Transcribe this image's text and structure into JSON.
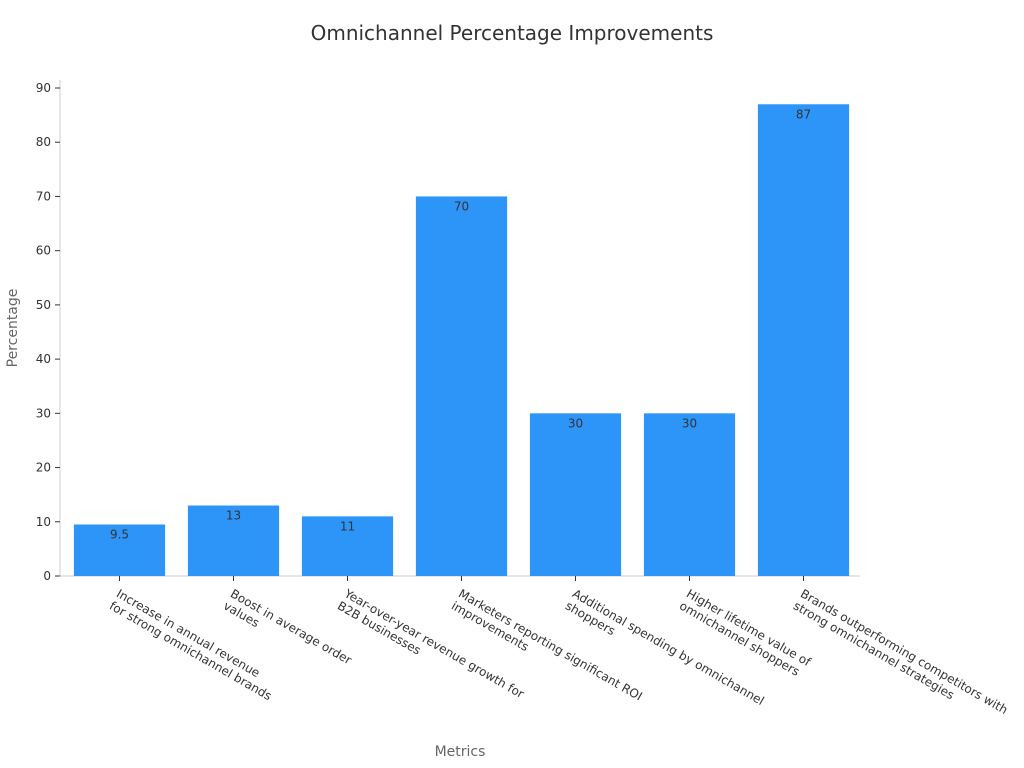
{
  "chart_data": {
    "type": "bar",
    "title": "Omnichannel Percentage Improvements",
    "xlabel": "Metrics",
    "ylabel": "Percentage",
    "ylim": [
      0,
      90
    ],
    "yticks": [
      0,
      10,
      20,
      30,
      40,
      50,
      60,
      70,
      80,
      90
    ],
    "grid": false,
    "legend": "none",
    "bar_color": "#2e95f8",
    "categories": [
      [
        "Increase in annual revenue",
        "for strong omnichannel brands"
      ],
      [
        "Boost in average order",
        "values"
      ],
      [
        "Year-over-year revenue growth for",
        "B2B businesses"
      ],
      [
        "Marketers reporting significant ROI",
        "improvements"
      ],
      [
        "Additional spending by omnichannel",
        "shoppers"
      ],
      [
        "Higher lifetime value of",
        "omnichannel shoppers"
      ],
      [
        "Brands outperforming competitors with",
        "strong omnichannel strategies"
      ]
    ],
    "values": [
      9.5,
      13,
      11,
      70,
      30,
      30,
      87
    ]
  }
}
